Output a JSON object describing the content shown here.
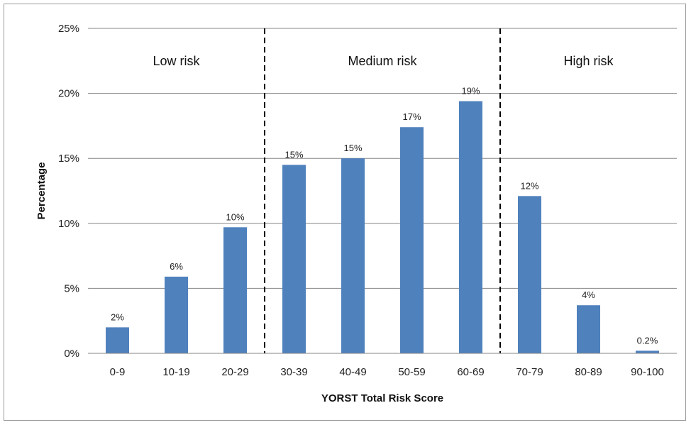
{
  "chart_data": {
    "type": "bar",
    "categories": [
      "0-9",
      "10-19",
      "20-29",
      "30-39",
      "40-49",
      "50-59",
      "60-69",
      "70-79",
      "80-89",
      "90-100"
    ],
    "values": [
      2.0,
      5.9,
      9.7,
      14.5,
      15.0,
      17.4,
      19.4,
      12.1,
      3.7,
      0.2
    ],
    "data_labels": [
      "2%",
      "6%",
      "10%",
      "15%",
      "15%",
      "17%",
      "19%",
      "12%",
      "4%",
      "0.2%"
    ],
    "xlabel": "YORST Total Risk Score",
    "ylabel": "Percentage",
    "ylim": [
      0,
      25
    ],
    "yticks": [
      0,
      5,
      10,
      15,
      20,
      25
    ],
    "ytick_labels": [
      "0%",
      "5%",
      "10%",
      "15%",
      "20%",
      "25%"
    ],
    "grid": true,
    "bar_color": "#4F81BD",
    "regions": [
      {
        "label": "Low risk",
        "from_index": 0,
        "to_index": 2
      },
      {
        "label": "Medium risk",
        "from_index": 3,
        "to_index": 6
      },
      {
        "label": "High risk",
        "from_index": 7,
        "to_index": 9
      }
    ]
  }
}
